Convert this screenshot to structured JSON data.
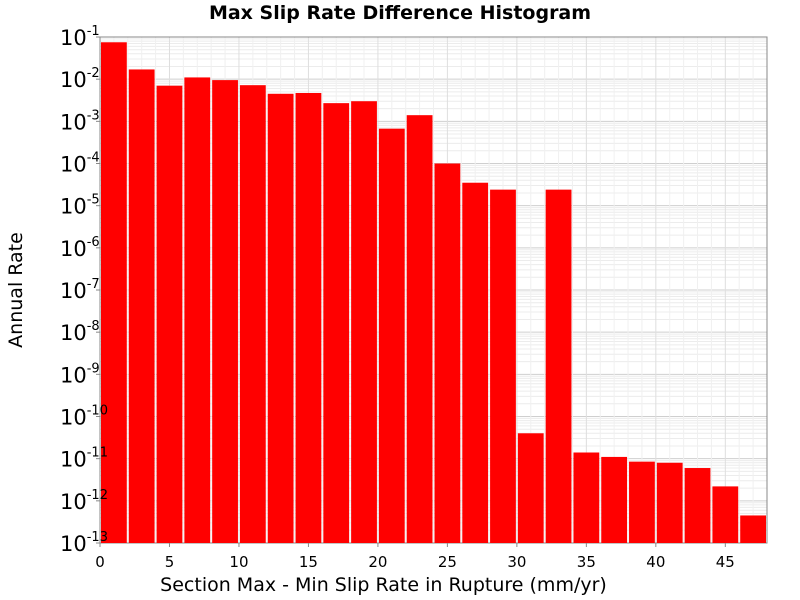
{
  "chart_data": {
    "type": "bar",
    "title": "Max Slip Rate Difference Histogram",
    "xlabel": "Section Max - Min Slip Rate in Rupture (mm/yr)",
    "ylabel": "Annual Rate",
    "xlim": [
      0,
      48
    ],
    "ylim": [
      1e-13,
      0.1
    ],
    "y_scale": "log",
    "bin_width": 2,
    "x_ticks": [
      0,
      5,
      10,
      15,
      20,
      25,
      30,
      35,
      40,
      45
    ],
    "y_ticks": [
      {
        "base": "10",
        "exp": "-1"
      },
      {
        "base": "10",
        "exp": "-2"
      },
      {
        "base": "10",
        "exp": "-3"
      },
      {
        "base": "10",
        "exp": "-4"
      },
      {
        "base": "10",
        "exp": "-5"
      },
      {
        "base": "10",
        "exp": "-6"
      },
      {
        "base": "10",
        "exp": "-7"
      },
      {
        "base": "10",
        "exp": "-8"
      },
      {
        "base": "10",
        "exp": "-9"
      },
      {
        "base": "10",
        "exp": "-10"
      },
      {
        "base": "10",
        "exp": "-11"
      },
      {
        "base": "10",
        "exp": "-12"
      },
      {
        "base": "10",
        "exp": "-13"
      }
    ],
    "x": [
      1,
      3,
      5,
      7,
      9,
      11,
      13,
      15,
      17,
      19,
      21,
      23,
      25,
      27,
      29,
      31,
      33,
      35,
      37,
      39,
      41,
      43,
      45,
      47
    ],
    "values": [
      0.075,
      0.017,
      0.007,
      0.011,
      0.0095,
      0.0072,
      0.0045,
      0.0047,
      0.0027,
      0.003,
      0.00067,
      0.0014,
      0.0001,
      3.5e-05,
      2.4e-05,
      4e-11,
      2.4e-05,
      1.4e-11,
      1.1e-11,
      8.5e-12,
      8e-12,
      6e-12,
      2.2e-12,
      4.5e-13
    ],
    "bar_color": "#ff0000",
    "grid": true
  }
}
